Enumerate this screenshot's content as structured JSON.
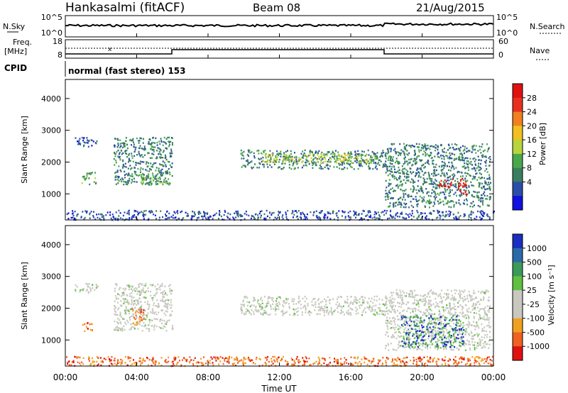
{
  "header": {
    "station": "Hankasalmi (fitACF)",
    "beam": "Beam 08",
    "date": "21/Aug/2015"
  },
  "noise_panel": {
    "left_label": "N.Sky",
    "right_label": "N.Search",
    "left_ticks": [
      "10^5",
      "10^0"
    ],
    "right_ticks": [
      "10^5",
      "10^0"
    ]
  },
  "freq_panel": {
    "left_label_1": "Freq.",
    "left_label_2": "[MHz]",
    "right_label": "Nave",
    "left_ticks": [
      "18",
      "8"
    ],
    "right_ticks": [
      "60",
      "0"
    ]
  },
  "cpid": {
    "label": "CPID",
    "program": "normal (fast stereo) 153"
  },
  "power_panel": {
    "ylabel": "Slant Range [km]",
    "yticks": [
      "4000",
      "3000",
      "2000",
      "1000"
    ],
    "colorbar_label": "Power [dB]",
    "colorbar_ticks": [
      "28",
      "24",
      "20",
      "16",
      "12",
      "8",
      "4"
    ],
    "colors": [
      "#1010e0",
      "#2a4ea8",
      "#3a7e60",
      "#4aa84a",
      "#b8d43c",
      "#f0c020",
      "#f08020",
      "#e83020",
      "#e01010"
    ]
  },
  "velocity_panel": {
    "ylabel": "Slant Range [km]",
    "yticks": [
      "4000",
      "3000",
      "2000",
      "1000"
    ],
    "colorbar_label": "Velocity [m s⁻¹]",
    "colorbar_ticks": [
      "1000",
      "500",
      "100",
      "25",
      "-25",
      "-100",
      "-500",
      "-1000"
    ],
    "colors": [
      "#1a2ec0",
      "#2a6aa8",
      "#3a9a5a",
      "#60c040",
      "#c8c8c0",
      "#c8c8c0",
      "#f0a020",
      "#f06020",
      "#e01010"
    ]
  },
  "xaxis": {
    "label": "Time UT",
    "ticks": [
      "00:00",
      "04:00",
      "08:00",
      "12:00",
      "16:00",
      "20:00",
      "00:00"
    ]
  },
  "chart_data": {
    "type": "heatmap",
    "x_range_hours": [
      0,
      24
    ],
    "y_range_km": [
      180,
      4600
    ],
    "power_bands": [
      {
        "t": [
          0.5,
          1.8
        ],
        "r": [
          2500,
          2800
        ],
        "level": 1
      },
      {
        "t": [
          0.9,
          1.7
        ],
        "r": [
          1300,
          1700
        ],
        "level": 3
      },
      {
        "t": [
          2.7,
          6.0
        ],
        "r": [
          1300,
          2800
        ],
        "level": 2
      },
      {
        "t": [
          4.2,
          5.9
        ],
        "r": [
          1300,
          1700
        ],
        "level": 3
      },
      {
        "t": [
          9.8,
          18.2
        ],
        "r": [
          1800,
          2400
        ],
        "level": 2
      },
      {
        "t": [
          11.0,
          17.5
        ],
        "r": [
          2000,
          2300
        ],
        "level": 4
      },
      {
        "t": [
          17.9,
          23.8
        ],
        "r": [
          600,
          2600
        ],
        "level": 2
      },
      {
        "t": [
          20.9,
          21.7
        ],
        "r": [
          1200,
          1500
        ],
        "level": 8
      },
      {
        "t": [
          22.0,
          22.5
        ],
        "r": [
          1000,
          1600
        ],
        "level": 8
      },
      {
        "t": [
          0.0,
          24.0
        ],
        "r": [
          200,
          500
        ],
        "level": 1
      }
    ],
    "velocity_bands": [
      {
        "t": [
          0.5,
          1.8
        ],
        "r": [
          2500,
          2800
        ],
        "class": "ground"
      },
      {
        "t": [
          0.9,
          1.5
        ],
        "r": [
          1300,
          1600
        ],
        "class": "negative"
      },
      {
        "t": [
          2.7,
          6.0
        ],
        "r": [
          1300,
          2800
        ],
        "class": "ground"
      },
      {
        "t": [
          3.7,
          4.4
        ],
        "r": [
          1500,
          2000
        ],
        "class": "negative"
      },
      {
        "t": [
          9.8,
          18.2
        ],
        "r": [
          1800,
          2400
        ],
        "class": "ground"
      },
      {
        "t": [
          17.9,
          23.8
        ],
        "r": [
          700,
          2600
        ],
        "class": "ground"
      },
      {
        "t": [
          18.8,
          22.3
        ],
        "r": [
          800,
          1800
        ],
        "class": "positive"
      },
      {
        "t": [
          0.0,
          24.0
        ],
        "r": [
          200,
          500
        ],
        "class": "negative"
      }
    ]
  }
}
